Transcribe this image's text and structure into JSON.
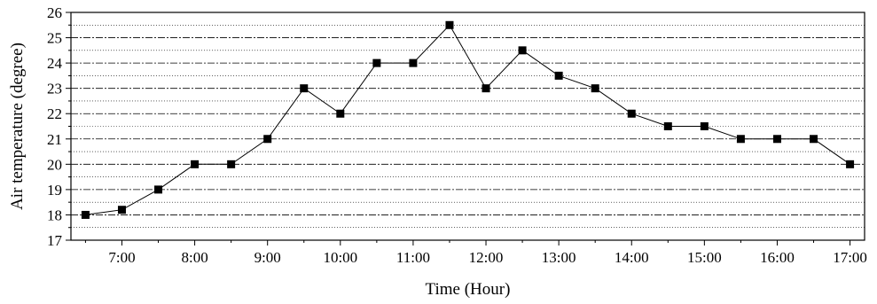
{
  "chart_data": {
    "type": "line",
    "title": "",
    "xlabel": "Time (Hour)",
    "ylabel": "Air temperature (degree)",
    "xlim": [
      6.3,
      17.2
    ],
    "ylim": [
      17,
      26
    ],
    "x_ticks": [
      7,
      8,
      9,
      10,
      11,
      12,
      13,
      14,
      15,
      16,
      17
    ],
    "x_tick_labels": [
      "7:00",
      "8:00",
      "9:00",
      "10:00",
      "11:00",
      "12:00",
      "13:00",
      "14:00",
      "15:00",
      "16:00",
      "17:00"
    ],
    "y_ticks": [
      17,
      18,
      19,
      20,
      21,
      22,
      23,
      24,
      25,
      26
    ],
    "y_tick_labels": [
      "17",
      "18",
      "19",
      "20",
      "21",
      "22",
      "23",
      "24",
      "25",
      "26"
    ],
    "grid": true,
    "legend": "none",
    "series": [
      {
        "x": [
          "6:30",
          "7:00",
          "7:30",
          "8:00",
          "8:30",
          "9:00",
          "9:30",
          "10:00",
          "10:30",
          "11:00",
          "11:30",
          "12:00",
          "12:30",
          "13:00",
          "13:30",
          "14:00",
          "14:30",
          "15:00",
          "15:30",
          "16:00",
          "16:30",
          "17:00"
        ],
        "values": [
          18,
          18.2,
          19,
          20,
          20,
          21,
          23,
          22,
          24,
          24,
          25.5,
          23,
          24.5,
          23.5,
          23,
          22,
          21.5,
          21.5,
          21,
          21,
          21,
          20
        ],
        "marker": "square",
        "color": "#000000"
      }
    ]
  }
}
